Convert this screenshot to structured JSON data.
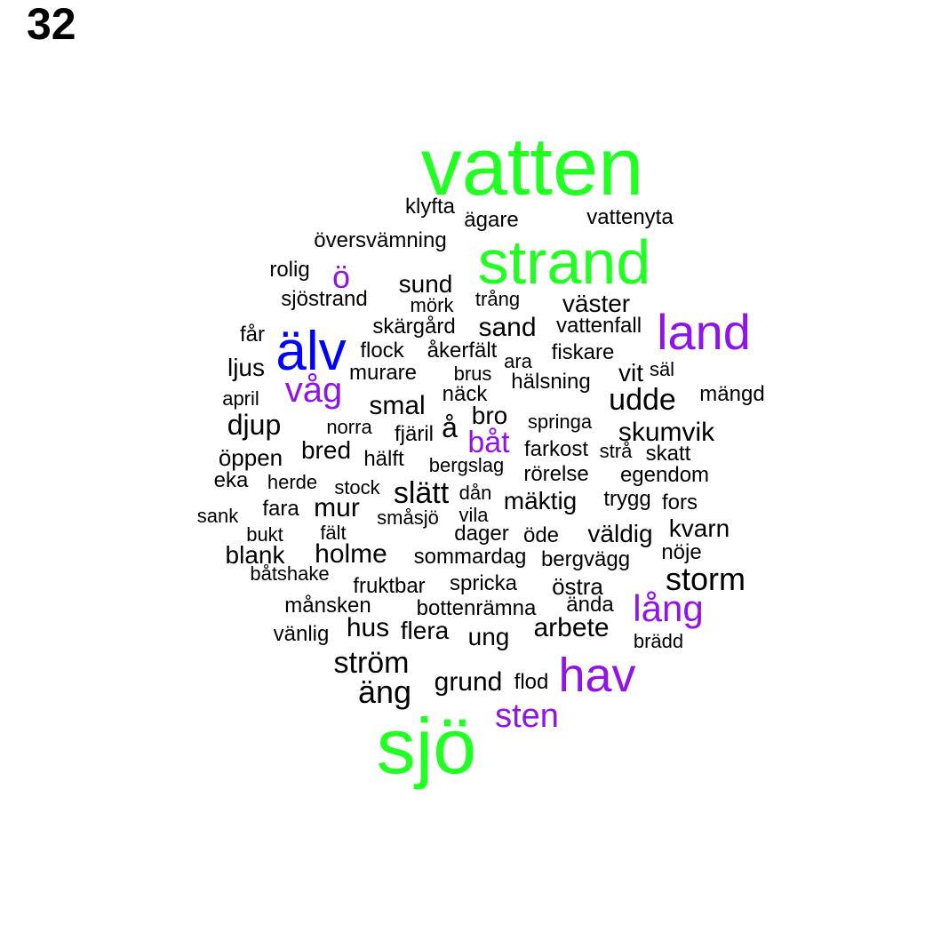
{
  "panel_number": "32",
  "colors": {
    "green": "#22ff22",
    "blue": "#0000ff",
    "purple": "#8f14ea",
    "black": "#000000"
  },
  "words": [
    {
      "text": "vatten",
      "color": "green"
    },
    {
      "text": "strand",
      "color": "green"
    },
    {
      "text": "sjö",
      "color": "green"
    },
    {
      "text": "älv",
      "color": "blue"
    },
    {
      "text": "land",
      "color": "purple"
    },
    {
      "text": "hav",
      "color": "purple"
    },
    {
      "text": "ö",
      "color": "purple"
    },
    {
      "text": "våg",
      "color": "purple"
    },
    {
      "text": "båt",
      "color": "purple"
    },
    {
      "text": "lång",
      "color": "purple"
    },
    {
      "text": "sten",
      "color": "purple"
    },
    {
      "text": "klyfta",
      "color": "black"
    },
    {
      "text": "ägare",
      "color": "black"
    },
    {
      "text": "vattenyta",
      "color": "black"
    },
    {
      "text": "översvämning",
      "color": "black"
    },
    {
      "text": "rolig",
      "color": "black"
    },
    {
      "text": "sund",
      "color": "black"
    },
    {
      "text": "sjöstrand",
      "color": "black"
    },
    {
      "text": "mörk",
      "color": "black"
    },
    {
      "text": "trång",
      "color": "black"
    },
    {
      "text": "väster",
      "color": "black"
    },
    {
      "text": "skärgård",
      "color": "black"
    },
    {
      "text": "sand",
      "color": "black"
    },
    {
      "text": "vattenfall",
      "color": "black"
    },
    {
      "text": "får",
      "color": "black"
    },
    {
      "text": "flock",
      "color": "black"
    },
    {
      "text": "åkerfält",
      "color": "black"
    },
    {
      "text": "ara",
      "color": "black"
    },
    {
      "text": "fiskare",
      "color": "black"
    },
    {
      "text": "ljus",
      "color": "black"
    },
    {
      "text": "murare",
      "color": "black"
    },
    {
      "text": "brus",
      "color": "black"
    },
    {
      "text": "vit",
      "color": "black"
    },
    {
      "text": "säl",
      "color": "black"
    },
    {
      "text": "hälsning",
      "color": "black"
    },
    {
      "text": "april",
      "color": "black"
    },
    {
      "text": "näck",
      "color": "black"
    },
    {
      "text": "udde",
      "color": "black"
    },
    {
      "text": "mängd",
      "color": "black"
    },
    {
      "text": "smal",
      "color": "black"
    },
    {
      "text": "bro",
      "color": "black"
    },
    {
      "text": "djup",
      "color": "black"
    },
    {
      "text": "norra",
      "color": "black"
    },
    {
      "text": "å",
      "color": "black"
    },
    {
      "text": "springa",
      "color": "black"
    },
    {
      "text": "skumvik",
      "color": "black"
    },
    {
      "text": "fjäril",
      "color": "black"
    },
    {
      "text": "bred",
      "color": "black"
    },
    {
      "text": "farkost",
      "color": "black"
    },
    {
      "text": "strå",
      "color": "black"
    },
    {
      "text": "skatt",
      "color": "black"
    },
    {
      "text": "öppen",
      "color": "black"
    },
    {
      "text": "hälft",
      "color": "black"
    },
    {
      "text": "bergslag",
      "color": "black"
    },
    {
      "text": "rörelse",
      "color": "black"
    },
    {
      "text": "egendom",
      "color": "black"
    },
    {
      "text": "eka",
      "color": "black"
    },
    {
      "text": "herde",
      "color": "black"
    },
    {
      "text": "stock",
      "color": "black"
    },
    {
      "text": "slätt",
      "color": "black"
    },
    {
      "text": "dån",
      "color": "black"
    },
    {
      "text": "mäktig",
      "color": "black"
    },
    {
      "text": "trygg",
      "color": "black"
    },
    {
      "text": "fors",
      "color": "black"
    },
    {
      "text": "sank",
      "color": "black"
    },
    {
      "text": "fara",
      "color": "black"
    },
    {
      "text": "mur",
      "color": "black"
    },
    {
      "text": "småsjö",
      "color": "black"
    },
    {
      "text": "vila",
      "color": "black"
    },
    {
      "text": "bukt",
      "color": "black"
    },
    {
      "text": "fält",
      "color": "black"
    },
    {
      "text": "dager",
      "color": "black"
    },
    {
      "text": "öde",
      "color": "black"
    },
    {
      "text": "väldig",
      "color": "black"
    },
    {
      "text": "kvarn",
      "color": "black"
    },
    {
      "text": "blank",
      "color": "black"
    },
    {
      "text": "holme",
      "color": "black"
    },
    {
      "text": "sommardag",
      "color": "black"
    },
    {
      "text": "bergvägg",
      "color": "black"
    },
    {
      "text": "nöje",
      "color": "black"
    },
    {
      "text": "båtshake",
      "color": "black"
    },
    {
      "text": "storm",
      "color": "black"
    },
    {
      "text": "fruktbar",
      "color": "black"
    },
    {
      "text": "spricka",
      "color": "black"
    },
    {
      "text": "östra",
      "color": "black"
    },
    {
      "text": "månsken",
      "color": "black"
    },
    {
      "text": "bottenrämna",
      "color": "black"
    },
    {
      "text": "ända",
      "color": "black"
    },
    {
      "text": "vänlig",
      "color": "black"
    },
    {
      "text": "hus",
      "color": "black"
    },
    {
      "text": "flera",
      "color": "black"
    },
    {
      "text": "ung",
      "color": "black"
    },
    {
      "text": "arbete",
      "color": "black"
    },
    {
      "text": "brädd",
      "color": "black"
    },
    {
      "text": "ström",
      "color": "black"
    },
    {
      "text": "äng",
      "color": "black"
    },
    {
      "text": "grund",
      "color": "black"
    },
    {
      "text": "flod",
      "color": "black"
    }
  ]
}
